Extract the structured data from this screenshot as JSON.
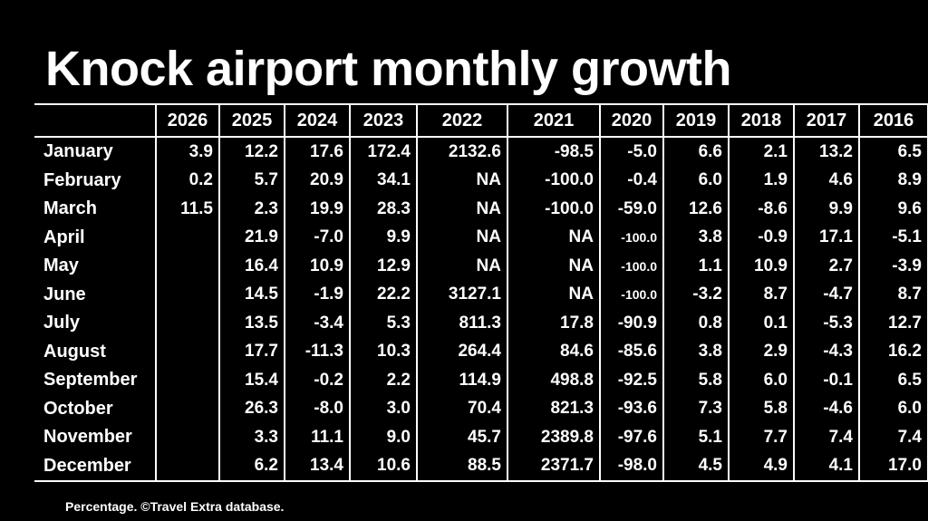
{
  "title": "Knock airport monthly growth",
  "footer": "Percentage. ©Travel Extra database.",
  "chart_data": {
    "type": "table",
    "title": "Knock airport monthly growth",
    "note": "Percentage. ©Travel Extra database.",
    "columns": [
      "2026",
      "2025",
      "2024",
      "2023",
      "2022",
      "2021",
      "2020",
      "2019",
      "2018",
      "2017",
      "2016"
    ],
    "rows": [
      {
        "label": "January",
        "values": [
          "3.9",
          "12.2",
          "17.6",
          "172.4",
          "2132.6",
          "-98.5",
          "-5.0",
          "6.6",
          "2.1",
          "13.2",
          "6.5"
        ]
      },
      {
        "label": "February",
        "values": [
          "0.2",
          "5.7",
          "20.9",
          "34.1",
          "NA",
          "-100.0",
          "-0.4",
          "6.0",
          "1.9",
          "4.6",
          "8.9"
        ]
      },
      {
        "label": "March",
        "values": [
          "11.5",
          "2.3",
          "19.9",
          "28.3",
          "NA",
          "-100.0",
          "-59.0",
          "12.6",
          "-8.6",
          "9.9",
          "9.6"
        ]
      },
      {
        "label": "April",
        "values": [
          "",
          "21.9",
          "-7.0",
          "9.9",
          "NA",
          "NA",
          "-100.0",
          "3.8",
          "-0.9",
          "17.1",
          "-5.1"
        ]
      },
      {
        "label": "May",
        "values": [
          "",
          "16.4",
          "10.9",
          "12.9",
          "NA",
          "NA",
          "-100.0",
          "1.1",
          "10.9",
          "2.7",
          "-3.9"
        ]
      },
      {
        "label": "June",
        "values": [
          "",
          "14.5",
          "-1.9",
          "22.2",
          "3127.1",
          "NA",
          "-100.0",
          "-3.2",
          "8.7",
          "-4.7",
          "8.7"
        ]
      },
      {
        "label": "July",
        "values": [
          "",
          "13.5",
          "-3.4",
          "5.3",
          "811.3",
          "17.8",
          "-90.9",
          "0.8",
          "0.1",
          "-5.3",
          "12.7"
        ]
      },
      {
        "label": "August",
        "values": [
          "",
          "17.7",
          "-11.3",
          "10.3",
          "264.4",
          "84.6",
          "-85.6",
          "3.8",
          "2.9",
          "-4.3",
          "16.2"
        ]
      },
      {
        "label": "September",
        "values": [
          "",
          "15.4",
          "-0.2",
          "2.2",
          "114.9",
          "498.8",
          "-92.5",
          "5.8",
          "6.0",
          "-0.1",
          "6.5"
        ]
      },
      {
        "label": "October",
        "values": [
          "",
          "26.3",
          "-8.0",
          "3.0",
          "70.4",
          "821.3",
          "-93.6",
          "7.3",
          "5.8",
          "-4.6",
          "6.0"
        ]
      },
      {
        "label": "November",
        "values": [
          "",
          "3.3",
          "11.1",
          "9.0",
          "45.7",
          "2389.8",
          "-97.6",
          "5.1",
          "7.7",
          "7.4",
          "7.4"
        ]
      },
      {
        "label": "December",
        "values": [
          "",
          "6.2",
          "13.4",
          "10.6",
          "88.5",
          "2371.7",
          "-98.0",
          "4.5",
          "4.9",
          "4.1",
          "17.0"
        ]
      }
    ]
  }
}
